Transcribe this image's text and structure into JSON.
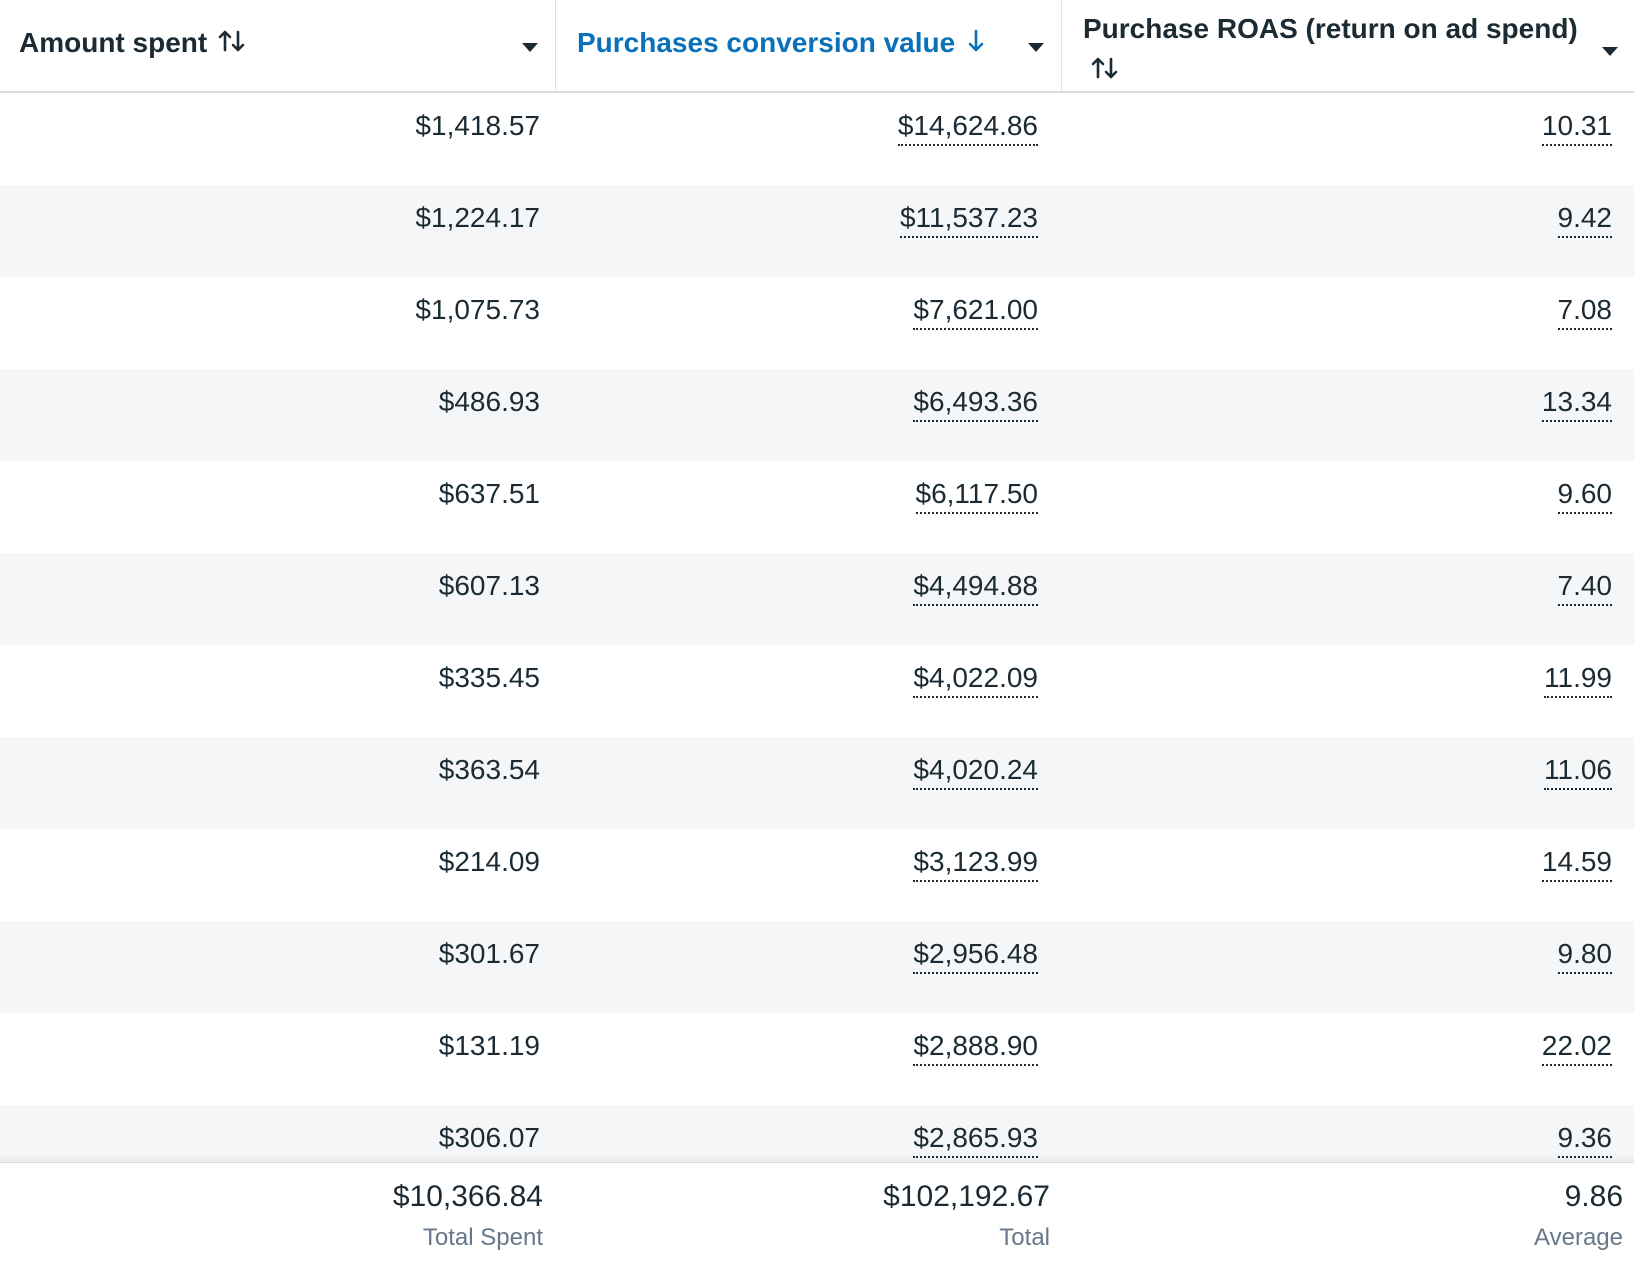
{
  "columns": [
    {
      "title": "Amount spent",
      "sort_icon": "sort-both-icon",
      "active": false
    },
    {
      "title": "Purchases conversion value",
      "sort_icon": "sort-down-icon",
      "active": true
    },
    {
      "title": "Purchase ROAS (return on ad spend)",
      "sort_icon": "sort-both-icon",
      "active": false
    }
  ],
  "colors": {
    "active_header": "#0a70b8",
    "text": "#1c2b33",
    "row_alt_bg": "#f4f6f8",
    "muted": "#67788a"
  },
  "rows": [
    {
      "spent": "$1,418.57",
      "value": "$14,624.86",
      "roas": "10.31"
    },
    {
      "spent": "$1,224.17",
      "value": "$11,537.23",
      "roas": "9.42"
    },
    {
      "spent": "$1,075.73",
      "value": "$7,621.00",
      "roas": "7.08"
    },
    {
      "spent": "$486.93",
      "value": "$6,493.36",
      "roas": "13.34"
    },
    {
      "spent": "$637.51",
      "value": "$6,117.50",
      "roas": "9.60"
    },
    {
      "spent": "$607.13",
      "value": "$4,494.88",
      "roas": "7.40"
    },
    {
      "spent": "$335.45",
      "value": "$4,022.09",
      "roas": "11.99"
    },
    {
      "spent": "$363.54",
      "value": "$4,020.24",
      "roas": "11.06"
    },
    {
      "spent": "$214.09",
      "value": "$3,123.99",
      "roas": "14.59"
    },
    {
      "spent": "$301.67",
      "value": "$2,956.48",
      "roas": "9.80"
    },
    {
      "spent": "$131.19",
      "value": "$2,888.90",
      "roas": "22.02"
    },
    {
      "spent": "$306.07",
      "value": "$2,865.93",
      "roas": "9.36"
    }
  ],
  "footer": {
    "spent_total": "$10,366.84",
    "spent_label": "Total Spent",
    "value_total": "$102,192.67",
    "value_label": "Total",
    "roas_avg": "9.86",
    "roas_label": "Average"
  }
}
